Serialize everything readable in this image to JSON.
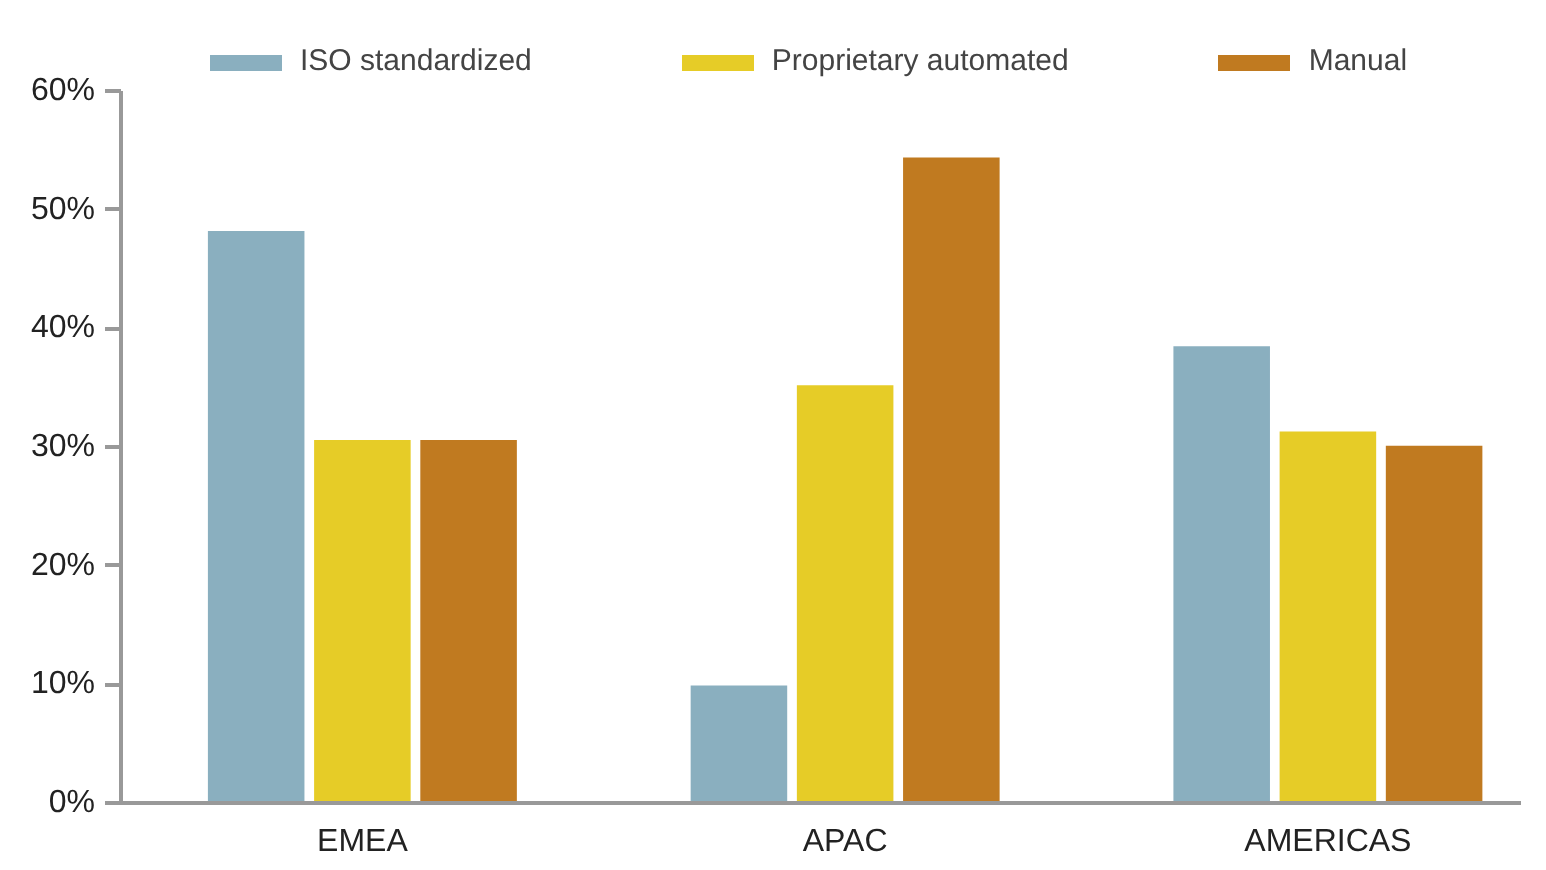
{
  "chart_data": {
    "type": "bar",
    "categories": [
      "EMEA",
      "APAC",
      "AMERICAS"
    ],
    "series": [
      {
        "name": "ISO standardized",
        "color": "#8aafbf",
        "values": [
          48.2,
          9.9,
          38.5
        ]
      },
      {
        "name": "Proprietary automated",
        "color": "#e6cc27",
        "values": [
          30.6,
          35.2,
          31.3
        ]
      },
      {
        "name": "Manual",
        "color": "#c07a20",
        "values": [
          30.6,
          54.4,
          30.1
        ]
      }
    ],
    "ylim": [
      0,
      60
    ],
    "yticks": [
      {
        "value": 0,
        "label": "0%"
      },
      {
        "value": 10,
        "label": "10%"
      },
      {
        "value": 20,
        "label": "20%"
      },
      {
        "value": 30,
        "label": "30%"
      },
      {
        "value": 40,
        "label": "40%"
      },
      {
        "value": 50,
        "label": "50%"
      },
      {
        "value": 60,
        "label": "60%"
      }
    ],
    "grid": false,
    "legend": "top"
  }
}
